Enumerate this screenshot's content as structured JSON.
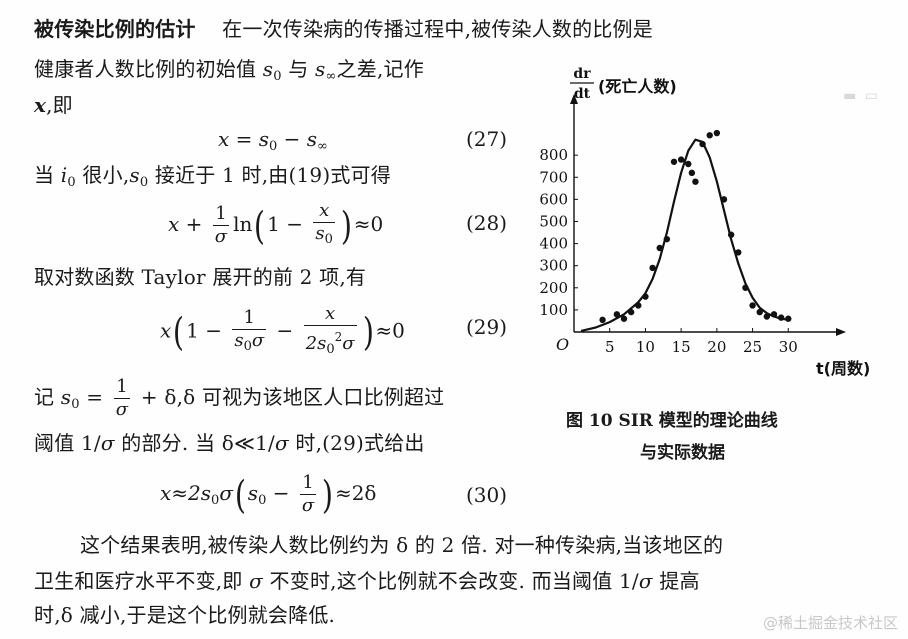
{
  "text": {
    "section_title": "被传染比例的估计",
    "l1_rest": "在一次传染病的传播过程中,被传染人数的比例是",
    "l2_a": "健康者人数比例的初始值 ",
    "l2_s0": "s",
    "l2_0": "0",
    "l2_b": " 与 ",
    "l2_sinf": "s",
    "l2_inf": "∞",
    "l2_c": "之差,记作",
    "l3_x": "x",
    "l3_rest": ",即",
    "l5_a": "当 ",
    "l5_i": "i",
    "l5_0": "0",
    "l5_b": " 很小,",
    "l5_s": "s",
    "l5_s0": "0",
    "l5_c": " 接近于 1 时,由(19)式可得",
    "l7": "取对数函数 Taylor 展开的前 2 项,有",
    "l9_a": "记 ",
    "l9_s": "s",
    "l9_0": "0",
    "l9_b": " = ",
    "l9_c": " + δ,δ 可视为该地区人口比例超过",
    "l10_a": "阈值 1/",
    "l10_sigma": "σ",
    "l10_b": " 的部分. 当 δ≪1/",
    "l10_c": "σ",
    "l10_d": " 时,(29)式给出",
    "p1": "这个结果表明,被传染人数比例约为 δ 的 2 倍. 对一种传染病,当该地区的",
    "p2_a": "卫生和医疗水平不变,即 ",
    "p2_sigma": "σ",
    "p2_b": " 不变时,这个比例就不会改变. 而当阈值 1/",
    "p2_c": "σ",
    "p2_d": " 提高",
    "p3": "时,δ 减小,于是这个比例就会降低."
  },
  "equations": {
    "eq27": {
      "lhs": "x = s",
      "s0": "0",
      "mid": " − s",
      "inf": "∞",
      "no": "(27)"
    },
    "eq28": {
      "x": "x + ",
      "num": "1",
      "den": "σ",
      "ln": "ln",
      "one": "1 − ",
      "fnum": "x",
      "fden": "s",
      "fden_sub": "0",
      "tail": "≈0",
      "no": "(28)"
    },
    "eq29": {
      "x": "x",
      "one": "1 − ",
      "n1": "1",
      "d1": "s",
      "d1sub": "0",
      "d1b": "σ",
      "minus": " − ",
      "n2": "x",
      "d2": "2s",
      "d2sub": "0",
      "d2sup": "2",
      "d2b": "σ",
      "tail": "≈0",
      "no": "(29)"
    },
    "eq30": {
      "lhs": "x≈2s",
      "s0": "0",
      "sig": "σ",
      "s": "s",
      "s0b": "0",
      "minus": " − ",
      "num": "1",
      "den": "σ",
      "tail": "≈2δ",
      "no": "(30)"
    },
    "frac9_num": "1",
    "frac9_den": "σ"
  },
  "chart_data": {
    "type": "scatter",
    "title": "",
    "ylabel_frac_num": "dr",
    "ylabel_frac_den": "dt",
    "ylabel_text": "(死亡人数)",
    "xlabel": "t(周数)",
    "origin_label": "O",
    "xlim": [
      0,
      35
    ],
    "ylim": [
      0,
      950
    ],
    "x_ticks": [
      5,
      10,
      15,
      20,
      25,
      30
    ],
    "x_tick_labels": [
      "5",
      "10",
      "15",
      "20",
      "25",
      "30"
    ],
    "y_ticks": [
      100,
      200,
      300,
      400,
      500,
      600,
      700,
      800
    ],
    "y_tick_labels": [
      "100",
      "200",
      "300",
      "400",
      "500",
      "600",
      "700",
      "800"
    ],
    "curve": {
      "name": "",
      "x": [
        1,
        3,
        5,
        7,
        9,
        10,
        11,
        12,
        13,
        14,
        15,
        16,
        17,
        18,
        19,
        20,
        21,
        22,
        23,
        24,
        25,
        26,
        27,
        28,
        29,
        30
      ],
      "y": [
        5,
        20,
        45,
        80,
        135,
        175,
        240,
        330,
        450,
        590,
        720,
        820,
        870,
        860,
        790,
        680,
        550,
        420,
        310,
        220,
        155,
        110,
        85,
        70,
        60,
        55
      ]
    },
    "points": {
      "x": [
        4,
        6,
        7,
        8,
        9,
        10,
        11,
        12,
        13,
        14,
        15,
        16,
        16.5,
        17,
        18,
        19,
        20,
        21,
        22,
        23,
        24,
        25,
        26,
        27,
        28,
        29,
        30
      ],
      "y": [
        55,
        80,
        60,
        90,
        120,
        160,
        290,
        380,
        420,
        770,
        780,
        760,
        720,
        680,
        850,
        890,
        900,
        600,
        440,
        360,
        200,
        120,
        90,
        70,
        80,
        65,
        60
      ]
    }
  },
  "figure_caption": {
    "line1": "图 10  SIR 模型的理论曲线",
    "line2": "与实际数据"
  },
  "watermark": "稀土掘金技术社区",
  "watermark_prefix": "@"
}
